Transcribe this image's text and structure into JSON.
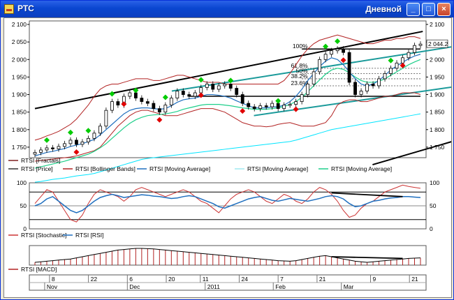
{
  "window": {
    "title": "РТС",
    "period": "Дневной",
    "buttons": {
      "minimize": "_",
      "maximize": "□",
      "close": "×"
    }
  },
  "colors": {
    "price": "#000000",
    "bollinger": "#b22222",
    "ma_blue": "#1f6fbf",
    "ma_cyan": "#00e5ff",
    "ma_green": "#1ecf8a",
    "channel": "#1a9a9a",
    "fractal_up": "#00cc00",
    "fractal_down": "#e00000",
    "stochastic": "#cc3333",
    "rsi": "#1f6fbf",
    "macd": "#b22222"
  },
  "chart_data": [
    {
      "type": "line",
      "panel": "price",
      "y_ticks": [
        "2 100",
        "2 050",
        "2 000",
        "1 950",
        "1 900",
        "1 850",
        "1 800",
        "1 750"
      ],
      "last_value": "2 044.2",
      "price": [
        1735,
        1742,
        1748,
        1745,
        1752,
        1760,
        1770,
        1758,
        1765,
        1775,
        1790,
        1810,
        1855,
        1880,
        1870,
        1895,
        1905,
        1890,
        1880,
        1875,
        1860,
        1850,
        1870,
        1890,
        1910,
        1900,
        1895,
        1905,
        1920,
        1930,
        1915,
        1925,
        1930,
        1918,
        1900,
        1875,
        1865,
        1860,
        1868,
        1865,
        1875,
        1860,
        1870,
        1872,
        1880,
        1900,
        1930,
        1965,
        2000,
        2015,
        2025,
        2030,
        2020,
        1935,
        1900,
        1910,
        1930,
        1925,
        1945,
        1960,
        1975,
        1990,
        2005,
        2020,
        2040,
        2044
      ],
      "bollinger_upper": [
        1770,
        1775,
        1782,
        1788,
        1795,
        1805,
        1815,
        1830,
        1850,
        1870,
        1895,
        1915,
        1925,
        1930,
        1930,
        1935,
        1940,
        1945,
        1945,
        1945,
        1940,
        1940,
        1945,
        1950,
        1955,
        1955,
        1950,
        1945,
        1940,
        1935,
        1935,
        1935,
        1930,
        1930,
        1930,
        1930,
        1930,
        1930,
        1930,
        1930,
        1930,
        1930,
        1940,
        1960,
        1985,
        2010,
        2030,
        2045,
        2055,
        2060,
        2065,
        2070,
        2065,
        2060,
        2055,
        2050,
        2045,
        2045,
        2050,
        2055,
        2055,
        2060,
        2060,
        2065,
        2065,
        2060
      ],
      "bollinger_lower": [
        1710,
        1712,
        1714,
        1716,
        1718,
        1720,
        1722,
        1725,
        1730,
        1735,
        1740,
        1750,
        1770,
        1790,
        1810,
        1825,
        1840,
        1850,
        1855,
        1855,
        1850,
        1845,
        1840,
        1840,
        1840,
        1845,
        1850,
        1855,
        1860,
        1860,
        1860,
        1855,
        1850,
        1840,
        1830,
        1820,
        1815,
        1810,
        1810,
        1808,
        1810,
        1815,
        1818,
        1820,
        1815,
        1810,
        1810,
        1810,
        1815,
        1820,
        1840,
        1870,
        1880,
        1885,
        1885,
        1880,
        1880,
        1885,
        1890,
        1895,
        1895,
        1900,
        1905,
        1905,
        1905,
        1900
      ],
      "ma_blue": [
        1725,
        1730,
        1735,
        1738,
        1742,
        1746,
        1752,
        1756,
        1760,
        1766,
        1772,
        1785,
        1800,
        1815,
        1830,
        1845,
        1855,
        1860,
        1862,
        1862,
        1860,
        1858,
        1860,
        1868,
        1878,
        1885,
        1888,
        1890,
        1895,
        1900,
        1900,
        1898,
        1895,
        1890,
        1882,
        1875,
        1868,
        1862,
        1862,
        1862,
        1865,
        1865,
        1870,
        1880,
        1895,
        1915,
        1940,
        1960,
        1980,
        1995,
        2005,
        2000,
        1985,
        1965,
        1945,
        1930,
        1925,
        1930,
        1940,
        1955,
        1970,
        1982,
        1992,
        2002,
        2010,
        2015
      ],
      "ma_cyan": [
        1650,
        1652,
        1655,
        1658,
        1660,
        1662,
        1665,
        1668,
        1670,
        1672,
        1675,
        1680,
        1685,
        1690,
        1695,
        1700,
        1705,
        1710,
        1715,
        1718,
        1720,
        1722,
        1724,
        1726,
        1728,
        1730,
        1732,
        1734,
        1736,
        1738,
        1740,
        1742,
        1744,
        1746,
        1748,
        1750,
        1752,
        1754,
        1756,
        1758,
        1760,
        1762,
        1764,
        1766,
        1770,
        1775,
        1780,
        1785,
        1790,
        1795,
        1800,
        1803,
        1806,
        1809,
        1812,
        1815,
        1818,
        1821,
        1824,
        1827,
        1830,
        1833,
        1836,
        1839,
        1842,
        1845
      ],
      "ma_green": [
        1690,
        1694,
        1698,
        1702,
        1706,
        1710,
        1715,
        1720,
        1725,
        1730,
        1738,
        1748,
        1760,
        1775,
        1790,
        1805,
        1818,
        1828,
        1835,
        1840,
        1842,
        1843,
        1845,
        1848,
        1852,
        1858,
        1862,
        1866,
        1870,
        1872,
        1872,
        1872,
        1870,
        1868,
        1865,
        1862,
        1860,
        1858,
        1858,
        1858,
        1860,
        1862,
        1866,
        1872,
        1880,
        1892,
        1908,
        1925,
        1942,
        1958,
        1970,
        1975,
        1972,
        1962,
        1950,
        1940,
        1935,
        1935,
        1938,
        1945,
        1955,
        1965,
        1975,
        1985,
        1993,
        2000
      ],
      "trend_lines": [
        {
          "name": "upper-black",
          "from": [
            0,
            1860
          ],
          "to": [
            85,
            2080
          ]
        },
        {
          "name": "channel-top",
          "from": [
            30,
            1910
          ],
          "to": [
            103,
            2060
          ]
        },
        {
          "name": "channel-mid",
          "from": [
            48,
            1840
          ],
          "to": [
            112,
            1960
          ]
        },
        {
          "name": "lower-black",
          "from": [
            74,
            1700
          ],
          "to": [
            103,
            1810
          ]
        }
      ],
      "fibonacci": {
        "labels": [
          "100%",
          "61.8%",
          "50%",
          "38.2%",
          "23.6%"
        ],
        "levels": [
          2030,
          1975,
          1960,
          1945,
          1925
        ],
        "support_line": 1895
      },
      "fractal_up_idx": [
        2,
        6,
        9,
        13,
        17,
        22,
        28,
        33,
        41,
        49,
        51,
        60
      ],
      "fractal_down_idx": [
        7,
        15,
        21,
        28,
        35,
        44,
        52,
        62
      ]
    },
    {
      "type": "line",
      "panel": "oscillators",
      "y_ticks": [
        "100",
        "50",
        "0"
      ],
      "stochastic": [
        55,
        70,
        85,
        80,
        60,
        40,
        20,
        15,
        30,
        55,
        75,
        85,
        80,
        75,
        70,
        60,
        70,
        85,
        90,
        85,
        80,
        75,
        70,
        75,
        80,
        85,
        80,
        70,
        60,
        55,
        45,
        35,
        50,
        65,
        75,
        80,
        85,
        80,
        70,
        60,
        55,
        65,
        75,
        70,
        60,
        55,
        65,
        80,
        90,
        85,
        75,
        60,
        40,
        25,
        30,
        45,
        55,
        60,
        70,
        80,
        85,
        90,
        95,
        92,
        90,
        88
      ],
      "rsi": [
        50,
        55,
        65,
        70,
        60,
        50,
        40,
        35,
        40,
        50,
        60,
        68,
        72,
        75,
        72,
        68,
        70,
        72,
        74,
        73,
        71,
        70,
        68,
        66,
        67,
        70,
        72,
        70,
        65,
        60,
        55,
        48,
        45,
        50,
        55,
        60,
        65,
        68,
        70,
        66,
        62,
        60,
        63,
        66,
        64,
        62,
        60,
        63,
        66,
        70,
        72,
        70,
        65,
        55,
        48,
        50,
        55,
        60,
        62,
        65,
        67,
        68,
        70,
        70,
        69,
        68
      ]
    },
    {
      "type": "bar",
      "panel": "macd",
      "macd": [
        10,
        12,
        14,
        16,
        18,
        20,
        22,
        26,
        30,
        34,
        38,
        42,
        46,
        50,
        54,
        56,
        58,
        60,
        60,
        59,
        58,
        56,
        54,
        52,
        50,
        48,
        46,
        44,
        42,
        40,
        38,
        36,
        34,
        32,
        30,
        28,
        26,
        24,
        22,
        20,
        18,
        16,
        15,
        14,
        16,
        20,
        24,
        28,
        32,
        34,
        30,
        26,
        22,
        18,
        14,
        12,
        10,
        12,
        14,
        16,
        18,
        20,
        22,
        24,
        25,
        26
      ]
    }
  ],
  "legend_price": [
    {
      "label": "RTSI [Fractals]",
      "color": "#7f1f1f"
    },
    {
      "label": "RTSI [Price]",
      "color": "#333333"
    },
    {
      "label": "RTSI [Bollinger Bands]",
      "color": "#b22222"
    },
    {
      "label": "RTSI [Moving Average]",
      "color": "#1f6fbf"
    },
    {
      "label": "RTSI [Moving Average]",
      "color": "#9fe8f0"
    },
    {
      "label": "RTSI [Moving Average]",
      "color": "#1ecf8a"
    }
  ],
  "legend_osc": [
    {
      "label": "RTSI [Stochastic]",
      "color": "#cc3333"
    },
    {
      "label": "RTSI [RSI]",
      "color": "#1f6fbf"
    }
  ],
  "legend_macd": [
    {
      "label": "RTSI [MACD]",
      "color": "#b22222"
    }
  ],
  "x_axis": {
    "days": [
      "8",
      "22",
      "6",
      "20",
      "11",
      "24",
      "7",
      "21",
      "9",
      "21"
    ],
    "months": [
      "Nov",
      "Dec",
      "2011",
      "Feb",
      "Mar"
    ]
  }
}
